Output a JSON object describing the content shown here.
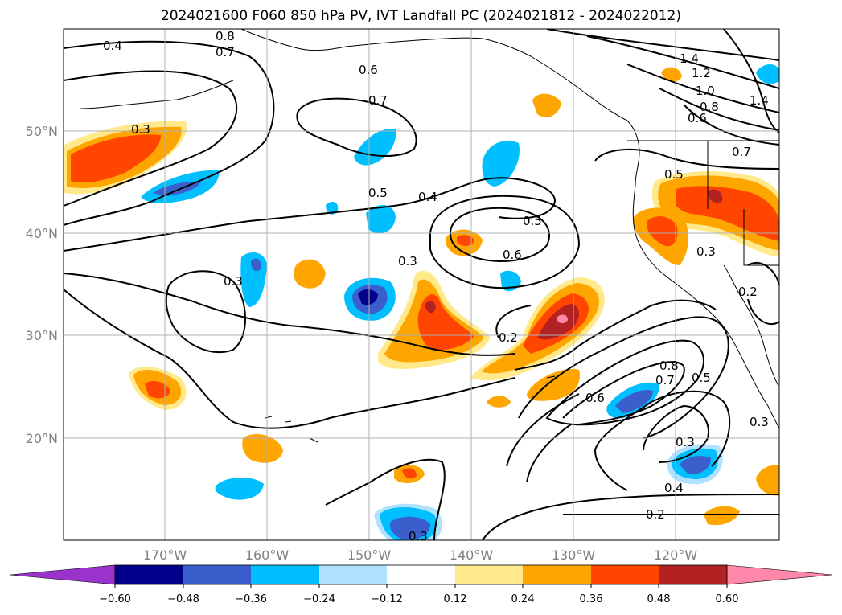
{
  "title": "2024021600 F060 850 hPa PV, IVT Landfall PC (2024021812 - 2024022012)",
  "lat_labels": [
    "50°N",
    "40°N",
    "30°N",
    "20°N"
  ],
  "lon_labels": [
    "170°W",
    "160°W",
    "150°W",
    "140°W",
    "130°W",
    "120°W"
  ],
  "contour_labels": [
    "0.4",
    "0.8",
    "0.7",
    "0.6",
    "0.7",
    "0.3",
    "0.5",
    "0.4",
    "0.5",
    "0.6",
    "0.3",
    "0.3",
    "0.2",
    "0.6",
    "0.7",
    "0.8",
    "0.5",
    "0.3",
    "0.4",
    "0.2",
    "0.3",
    "0.3",
    "0.5",
    "0.3",
    "1.4",
    "1.2",
    "1.0",
    "0.8",
    "0.6",
    "0.7",
    "1.4",
    "0.2"
  ],
  "colorbar": {
    "ticks": [
      "−0.60",
      "−0.48",
      "−0.36",
      "−0.24",
      "−0.12",
      "0.12",
      "0.24",
      "0.36",
      "0.48",
      "0.60"
    ],
    "colors": [
      "#9933cc",
      "#00008b",
      "#3a5fcd",
      "#00bfff",
      "#b0e2ff",
      "#ffffff",
      "#ffe98a",
      "#ffa500",
      "#ff4500",
      "#b22222",
      "#ff88aa"
    ]
  }
}
